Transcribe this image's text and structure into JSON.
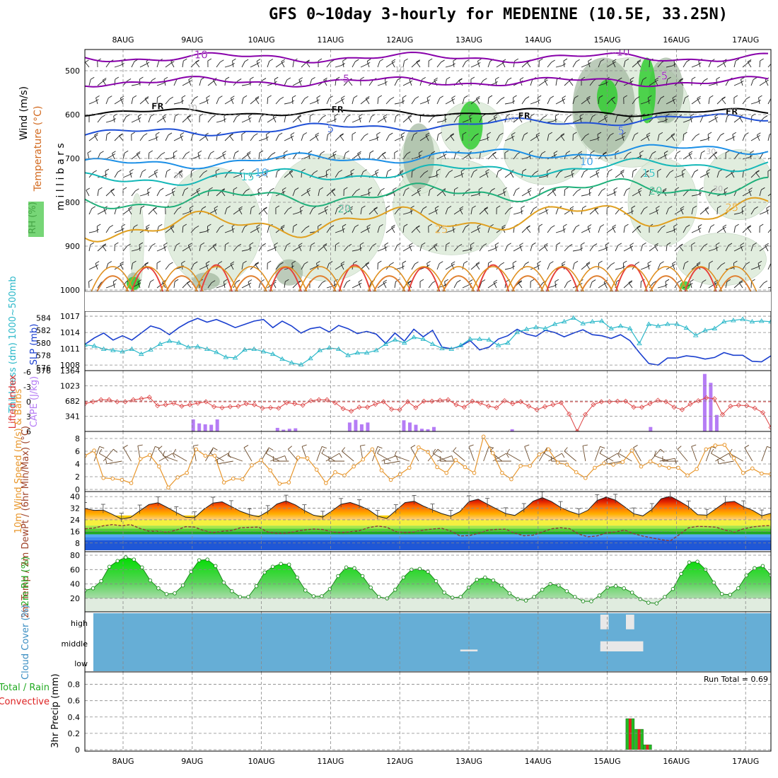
{
  "title": "GFS 0~10day 3-hourly for MEDENINE (10.5E, 33.25N)",
  "chart_data": {
    "type": "line",
    "days": [
      "8AUG",
      "9AUG",
      "10AUG",
      "11AUG",
      "12AUG",
      "13AUG",
      "14AUG",
      "15AUG",
      "16AUG",
      "17AUG"
    ],
    "panels": {
      "upper_air": {
        "ylabel": "m i l l i b a r s",
        "side_labels": [
          "Wind (m/s)",
          "Temperature (°C)",
          "RH (%)"
        ],
        "pressure_ticks": [
          500,
          600,
          700,
          800,
          900,
          1000
        ],
        "isotherm_labels": [
          {
            "text": "-10",
            "day": 1.1,
            "p": 472,
            "color": "#8800aa"
          },
          {
            "text": "-10",
            "day": 7.2,
            "p": 465,
            "color": "#8800aa"
          },
          {
            "text": "-5",
            "day": 3.2,
            "p": 527,
            "color": "#8800aa"
          },
          {
            "text": "-5",
            "day": 7.8,
            "p": 520,
            "color": "#8800aa"
          },
          {
            "text": "FR",
            "day": 0.5,
            "p": 588,
            "color": "#000000"
          },
          {
            "text": "FR",
            "day": 3.1,
            "p": 595,
            "color": "#000000"
          },
          {
            "text": "FR",
            "day": 5.8,
            "p": 610,
            "color": "#000000"
          },
          {
            "text": "FR",
            "day": 8.8,
            "p": 600,
            "color": "#000000"
          },
          {
            "text": "5",
            "day": 3.0,
            "p": 640,
            "color": "#1f4fd6"
          },
          {
            "text": "5",
            "day": 7.2,
            "p": 645,
            "color": "#1f4fd6"
          },
          {
            "text": "10",
            "day": 2.0,
            "p": 740,
            "color": "#1b8fe6"
          },
          {
            "text": "10",
            "day": 6.7,
            "p": 715,
            "color": "#1b8fe6"
          },
          {
            "text": "15",
            "day": 1.8,
            "p": 750,
            "color": "#14b8b8"
          },
          {
            "text": "15",
            "day": 7.6,
            "p": 742,
            "color": "#14b8b8"
          },
          {
            "text": "20",
            "day": 3.2,
            "p": 823,
            "color": "#1fb07a"
          },
          {
            "text": "20",
            "day": 7.7,
            "p": 782,
            "color": "#1fb07a"
          },
          {
            "text": "25",
            "day": 4.6,
            "p": 870,
            "color": "#e0a020"
          },
          {
            "text": "25",
            "day": 8.8,
            "p": 820,
            "color": "#e0a020"
          }
        ],
        "rh_labels": [
          {
            "text": "10",
            "day": 1.0,
            "p": 590
          },
          {
            "text": "10",
            "day": 4.0,
            "p": 503
          },
          {
            "text": "30",
            "day": 0.8,
            "p": 745
          },
          {
            "text": "30",
            "day": 3.2,
            "p": 817
          },
          {
            "text": "30",
            "day": 5.6,
            "p": 617
          },
          {
            "text": "30",
            "day": 8.5,
            "p": 690
          },
          {
            "text": "30",
            "day": 8.6,
            "p": 775
          }
        ]
      },
      "slp_thickness": {
        "ylabel_left": "Thickness (dm) 1000~500mb",
        "ylabel_right": "SLP (mb)",
        "thickness_ticks": [
          576,
          578,
          580,
          582,
          584
        ],
        "slp_ticks": [
          1008,
          1011,
          1014,
          1017
        ],
        "slp": [
          1011.8,
          1013.0,
          1013.9,
          1012.6,
          1013.4,
          1012.6,
          1013.9,
          1015.2,
          1014.7,
          1013.6,
          1014.9,
          1015.9,
          1016.6,
          1015.9,
          1016.4,
          1015.7,
          1014.9,
          1015.5,
          1016.1,
          1016.4,
          1014.9,
          1016.1,
          1015.2,
          1013.9,
          1014.7,
          1015.0,
          1014.1,
          1015.3,
          1014.7,
          1013.8,
          1014.2,
          1013.7,
          1012.0,
          1013.9,
          1012.4,
          1014.6,
          1013.2,
          1014.4,
          1011.3,
          1011.0,
          1011.5,
          1012.5,
          1010.8,
          1011.3,
          1012.8,
          1013.4,
          1014.6,
          1013.7,
          1013.3,
          1014.4,
          1014.0,
          1013.2,
          1013.9,
          1014.5,
          1013.6,
          1013.4,
          1012.9,
          1013.6,
          1012.5,
          1010.3,
          1008.3,
          1008.0,
          1009.3,
          1009.3,
          1009.7,
          1009.5,
          1009.1,
          1009.4,
          1010.3,
          1009.8,
          1009.8,
          1008.7,
          1008.6,
          1009.7
        ],
        "thickness": [
          579.7,
          579.5,
          579.0,
          578.8,
          578.6,
          579.0,
          578.2,
          578.9,
          579.8,
          580.3,
          580.0,
          579.3,
          579.4,
          579.0,
          578.5,
          577.7,
          577.6,
          578.9,
          579.0,
          578.6,
          578.2,
          577.4,
          576.8,
          576.5,
          577.5,
          578.8,
          579.2,
          579.0,
          578.0,
          578.4,
          578.4,
          578.8,
          579.8,
          580.5,
          580.0,
          580.9,
          580.6,
          579.8,
          579.1,
          579.0,
          579.6,
          580.6,
          580.6,
          580.5,
          579.6,
          580.0,
          581.7,
          582.2,
          582.5,
          582.3,
          583.0,
          583.4,
          584.0,
          583.1,
          583.4,
          583.5,
          582.3,
          582.7,
          582.3,
          579.9,
          583.0,
          582.7,
          583.0,
          583.0,
          582.4,
          581.2,
          582.0,
          582.3,
          583.4,
          583.6,
          583.8,
          583.4,
          583.5,
          583.4
        ]
      },
      "cape_li": {
        "ylabel_left": "Lifted Index",
        "ylabel_right": "CAPE (J/kg)",
        "li_ticks": [
          6,
          3,
          0,
          -3,
          -6
        ],
        "cape_ticks": [
          341,
          682,
          1023,
          1364
        ],
        "li_dashed_zero": 0,
        "cape": [
          0,
          0,
          0,
          0,
          0,
          0,
          0,
          0,
          0,
          0,
          0,
          0,
          0,
          0,
          0,
          0,
          0,
          0,
          270,
          180,
          160,
          150,
          270,
          0,
          0,
          0,
          0,
          0,
          0,
          0,
          0,
          0,
          80,
          40,
          60,
          70,
          0,
          0,
          0,
          0,
          0,
          0,
          0,
          0,
          200,
          260,
          160,
          200,
          0,
          0,
          0,
          0,
          0,
          250,
          200,
          150,
          60,
          50,
          100,
          0,
          0,
          0,
          0,
          0,
          0,
          0,
          0,
          0,
          0,
          0,
          0,
          50,
          0,
          0,
          0,
          0,
          0,
          0,
          0,
          0,
          0,
          0,
          0,
          0,
          0,
          0,
          0,
          0,
          0,
          0,
          0,
          0,
          0,
          0,
          100,
          0,
          0,
          0,
          0,
          0,
          0,
          0,
          0,
          1290,
          1090,
          370,
          0,
          0,
          0,
          0,
          0,
          0,
          0,
          0,
          0
        ],
        "li": [
          0.4,
          0.0,
          -0.4,
          -0.4,
          0.0,
          0.0,
          -0.4,
          -0.6,
          -0.9,
          0.8,
          0.6,
          0.3,
          0.9,
          0.6,
          0.3,
          0.0,
          1.0,
          1.2,
          1.0,
          0.9,
          0.4,
          0.6,
          1.3,
          1.2,
          1.3,
          0.2,
          0.4,
          0.7,
          -0.2,
          -0.4,
          -0.4,
          0.2,
          1.4,
          1.9,
          1.1,
          1.1,
          0.5,
          0.0,
          1.5,
          1.6,
          0.0,
          1.2,
          -0.1,
          -0.1,
          -0.3,
          -0.4,
          0.6,
          1.1,
          -0.1,
          0.3,
          0.9,
          1.2,
          -0.2,
          0.4,
          0.0,
          0.9,
          1.6,
          1.0,
          0.6,
          0.2,
          2.5,
          6.0,
          2.6,
          0.6,
          0.0,
          0.0,
          -0.1,
          -0.1,
          1.1,
          1.1,
          0.4,
          -0.3,
          0.0,
          1.1,
          1.6,
          0.5,
          -0.2,
          -0.8,
          -0.6,
          2.6,
          0.9,
          0.7,
          0.8,
          1.3,
          2.2,
          5.2
        ]
      },
      "wind10m": {
        "ylabel": "10m Wind Speed (m/s) & Barbs",
        "ticks": [
          0,
          2,
          4,
          6,
          8
        ],
        "speed": [
          5.3,
          6.1,
          1.8,
          1.7,
          1.5,
          1.0,
          4.8,
          5.4,
          3.6,
          0.3,
          1.9,
          2.6,
          6.3,
          5.3,
          5.3,
          1.1,
          1.7,
          1.6,
          3.8,
          4.6,
          3.0,
          0.9,
          1.1,
          5.0,
          4.9,
          3.1,
          1.0,
          2.7,
          2.2,
          3.6,
          4.7,
          6.3,
          3.0,
          1.5,
          2.4,
          3.4,
          6.6,
          5.9,
          3.5,
          2.6,
          4.6,
          3.5,
          2.6,
          8.3,
          5.7,
          2.6,
          1.6,
          3.7,
          3.7,
          5.5,
          6.3,
          4.2,
          3.9,
          2.7,
          1.8,
          3.4,
          4.1,
          3.9,
          4.3,
          6.1,
          3.6,
          4.4,
          3.8,
          3.4,
          3.4,
          2.2,
          3.2,
          6.3,
          6.9,
          7.0,
          4.9,
          2.6,
          3.3,
          2.5,
          2.4
        ],
        "barb_dir": [
          330,
          20,
          40,
          300,
          260,
          330,
          350,
          20,
          60,
          320,
          290,
          300,
          350,
          30,
          60,
          300,
          260,
          290,
          330,
          30,
          70,
          300,
          270,
          320,
          340,
          20,
          60,
          300,
          270,
          310,
          350,
          20,
          70,
          300,
          260,
          290,
          330,
          40,
          70,
          300,
          270,
          310,
          340,
          20,
          60,
          310,
          270,
          300,
          340,
          30,
          60,
          300,
          270,
          310,
          350,
          20,
          60,
          300,
          260,
          300,
          330,
          40,
          80,
          290,
          270,
          320,
          340,
          20,
          60,
          300,
          260,
          300,
          330,
          20,
          60
        ]
      },
      "temp2m": {
        "ylabel": "2m Temp / 2m DewPt / (6hr Min/Max) (°C)",
        "ticks": [
          8,
          16,
          24,
          32,
          40
        ],
        "temp": [
          31.9,
          30.5,
          30.7,
          27.8,
          24.5,
          25.7,
          30.2,
          34.5,
          35.8,
          32.5,
          29.0,
          25.8,
          25.5,
          31.2,
          35.6,
          36.4,
          33.2,
          29.9,
          27.6,
          26.1,
          29.8,
          34.9,
          37.0,
          34.3,
          30.4,
          27.2,
          25.9,
          30.1,
          34.7,
          36.0,
          33.8,
          31.0,
          26.5,
          24.9,
          30.4,
          35.9,
          36.8,
          33.5,
          30.9,
          28.3,
          26.5,
          29.7,
          36.6,
          38.2,
          34.8,
          31.5,
          28.3,
          27.0,
          31.2,
          36.8,
          39.3,
          36.6,
          32.6,
          29.8,
          27.7,
          30.6,
          37.4,
          39.7,
          37.6,
          33.0,
          28.2,
          26.7,
          31.2,
          38.5,
          40.2,
          36.8,
          33.0,
          27.5,
          27.2,
          31.7,
          36.1,
          36.7,
          33.1,
          30.5,
          26.8,
          28.5
        ],
        "dewpt": [
          17.8,
          18.3,
          19.9,
          20.7,
          19.9,
          20.7,
          18.1,
          16.2,
          16.1,
          15.5,
          16.9,
          19.3,
          19.0,
          16.5,
          15.2,
          16.1,
          16.6,
          18.5,
          18.8,
          19.0,
          15.6,
          14.7,
          14.7,
          16.0,
          17.0,
          17.7,
          17.3,
          15.7,
          15.1,
          15.8,
          16.5,
          18.6,
          19.7,
          18.9,
          15.9,
          15.2,
          15.6,
          16.9,
          17.7,
          18.1,
          16.3,
          12.9,
          13.1,
          14.6,
          16.8,
          17.4,
          17.6,
          14.8,
          13.0,
          13.4,
          15.6,
          17.8,
          18.5,
          17.9,
          14.1,
          12.3,
          12.9,
          14.9,
          15.7,
          16.9,
          14.4,
          12.8,
          11.5,
          10.3,
          9.5,
          13.9,
          18.5,
          19.5,
          19.3,
          18.9,
          16.9,
          15.5,
          17.8,
          19.1,
          19.8,
          20.0
        ]
      },
      "rh2m": {
        "ylabel": "2m RH (%)",
        "ticks": [
          20,
          40,
          60,
          80
        ],
        "rh": [
          31,
          34,
          44,
          64,
          72,
          77,
          74,
          63,
          45,
          34,
          26,
          27,
          38,
          57,
          73,
          74,
          65,
          42,
          30,
          22,
          22,
          37,
          56,
          64,
          68,
          67,
          49,
          31,
          23,
          23,
          33,
          51,
          63,
          62,
          51,
          35,
          22,
          20,
          32,
          49,
          60,
          61,
          57,
          44,
          28,
          21,
          22,
          35,
          46,
          49,
          45,
          38,
          27,
          19,
          17,
          22,
          32,
          40,
          38,
          30,
          22,
          16,
          16,
          24,
          35,
          37,
          34,
          28,
          19,
          14,
          13,
          22,
          33,
          54,
          70,
          71,
          60,
          42,
          26,
          25,
          34,
          52,
          62,
          65,
          52
        ]
      },
      "cloud_cover": {
        "ylabel": "Cloud Cover (%)",
        "levels": [
          "high",
          "middle",
          "low"
        ],
        "gaps": [
          {
            "level": "middle",
            "day": 5.0,
            "width": 0.25,
            "amount": 0.1
          },
          {
            "level": "high",
            "day": 6.96,
            "width": 0.12,
            "amount": 0.8
          },
          {
            "level": "middle",
            "day": 6.96,
            "width": 0.12,
            "amount": 0.35
          },
          {
            "level": "high",
            "day": 7.33,
            "width": 0.12,
            "amount": 0.8
          },
          {
            "level": "middle",
            "day": 7.21,
            "width": 0.62,
            "amount": 0.55
          }
        ]
      },
      "precip": {
        "ylabel": "3hr Precip (mm)",
        "legend_total": "Total / Rain",
        "legend_conv": "Convective",
        "run_total": "Run Total = 0.69",
        "ticks": [
          0,
          0.2,
          0.4,
          0.6,
          0.8
        ],
        "bars": [
          {
            "day": 7.33,
            "total": 0.38,
            "convective": 0.38
          },
          {
            "day": 7.46,
            "total": 0.25,
            "convective": 0.25
          },
          {
            "day": 7.58,
            "total": 0.06,
            "convective": 0.06
          }
        ]
      }
    },
    "colors": {
      "slp": "#1a3fcf",
      "thickness": "#2bb8c9",
      "cape": "#b57cf5",
      "li": "#dd4444",
      "wind_speed": "#e8962b",
      "temp_fill_hot": "#c00000",
      "temp_fill_warm": "#ff8800",
      "rh_green": "#11dd11",
      "cloud_blue": "#66aed6",
      "precip_total": "#22bb22",
      "precip_conv": "#dd2222",
      "side_temperature": "#d2691e",
      "side_wind": "#8855cc"
    }
  }
}
